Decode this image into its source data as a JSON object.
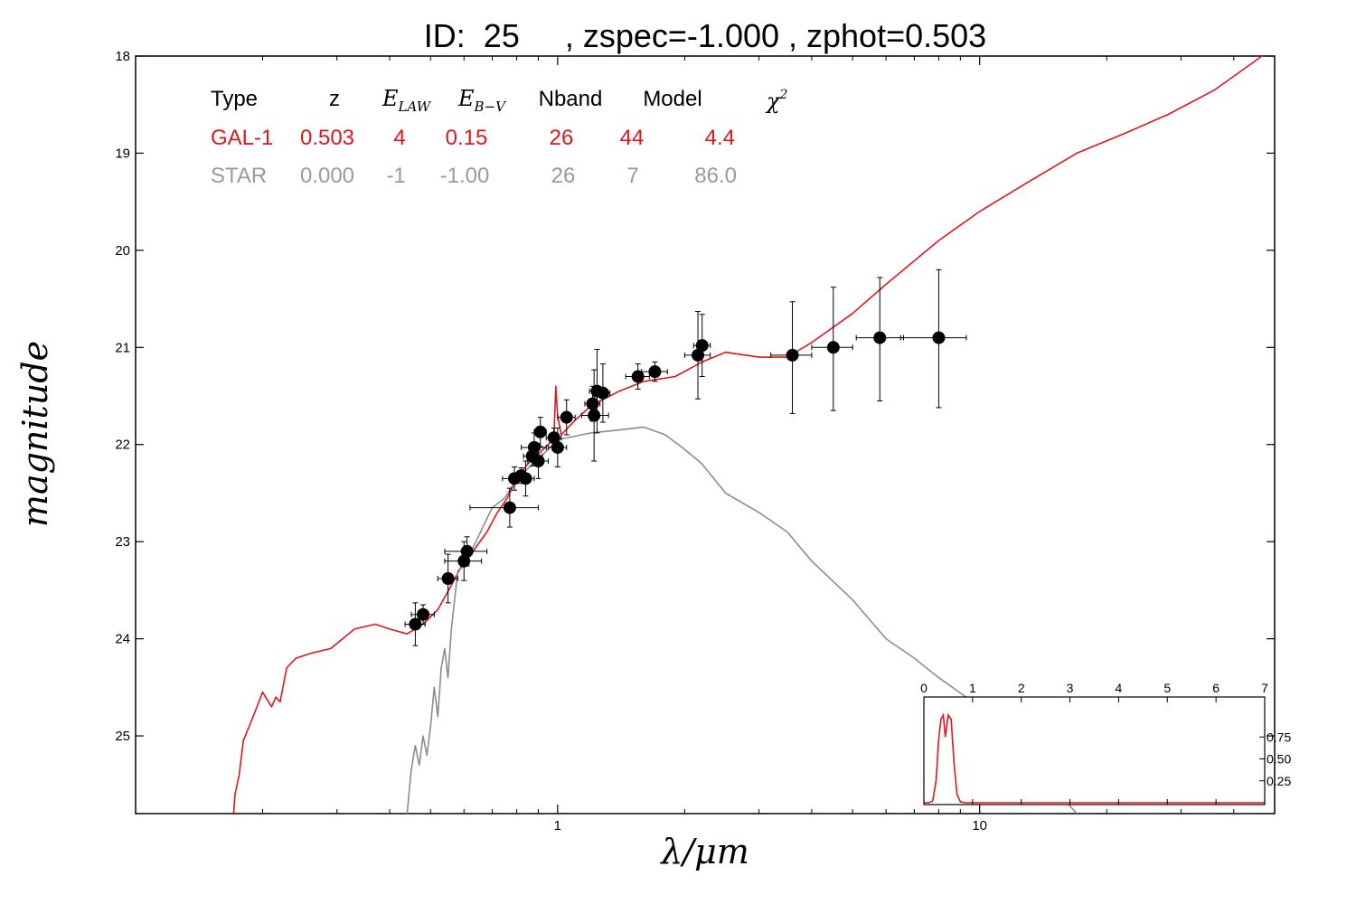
{
  "title": "ID:  25     , zspec=-1.000 , zphot=0.503",
  "colors": {
    "galaxy": "#e0161c",
    "star": "#8c8c8c",
    "points": "#000000",
    "axis": "#000000"
  },
  "chart_data": [
    {
      "type": "line",
      "xlabel": "λ/μm",
      "ylabel": "magnitude",
      "x_scale": "log",
      "y_inverted": true,
      "xlim": [
        0.1,
        50
      ],
      "ylim": [
        18.0,
        25.8
      ],
      "x_ticks": [
        {
          "value": 1,
          "label": "1"
        },
        {
          "value": 10,
          "label": "10"
        }
      ],
      "y_ticks": [
        {
          "value": 18,
          "label": "18"
        },
        {
          "value": 19,
          "label": "19"
        },
        {
          "value": 20,
          "label": "20"
        },
        {
          "value": 21,
          "label": "21"
        },
        {
          "value": 22,
          "label": "22"
        },
        {
          "value": 23,
          "label": "23"
        },
        {
          "value": 24,
          "label": "24"
        },
        {
          "value": 25,
          "label": "25"
        }
      ],
      "grid": false,
      "legend_table": {
        "headers": [
          "Type",
          "z",
          "E_LAW",
          "E_B−V",
          "Nband",
          "Model",
          "χ²"
        ],
        "rows": [
          {
            "type": "GAL-1",
            "z": "0.503",
            "elaw": "4",
            "ebv": "0.15",
            "nband": "26",
            "model": "44",
            "chi2": "4.4",
            "color": "#e0161c"
          },
          {
            "type": "STAR",
            "z": "0.000",
            "elaw": "-1",
            "ebv": "-1.00",
            "nband": "26",
            "model": "7",
            "chi2": "86.0",
            "color": "#9a9a9a"
          }
        ]
      },
      "series": [
        {
          "kind": "galaxy-template",
          "points": [
            [
              0.17,
              25.9
            ],
            [
              0.172,
              25.6
            ],
            [
              0.176,
              25.4
            ],
            [
              0.18,
              25.05
            ],
            [
              0.19,
              24.8
            ],
            [
              0.2,
              24.55
            ],
            [
              0.21,
              24.7
            ],
            [
              0.215,
              24.6
            ],
            [
              0.22,
              24.65
            ],
            [
              0.228,
              24.3
            ],
            [
              0.24,
              24.2
            ],
            [
              0.26,
              24.15
            ],
            [
              0.29,
              24.1
            ],
            [
              0.33,
              23.9
            ],
            [
              0.37,
              23.85
            ],
            [
              0.4,
              23.9
            ],
            [
              0.44,
              23.95
            ],
            [
              0.48,
              23.85
            ],
            [
              0.52,
              23.7
            ],
            [
              0.56,
              23.45
            ],
            [
              0.6,
              23.2
            ],
            [
              0.63,
              23.1
            ],
            [
              0.68,
              22.9
            ],
            [
              0.72,
              22.7
            ],
            [
              0.76,
              22.55
            ],
            [
              0.8,
              22.35
            ],
            [
              0.85,
              22.2
            ],
            [
              0.9,
              22.1
            ],
            [
              0.95,
              22.0
            ],
            [
              0.98,
              21.95
            ],
            [
              0.99,
              21.4
            ],
            [
              1.0,
              21.7
            ],
            [
              1.02,
              21.9
            ],
            [
              1.1,
              21.75
            ],
            [
              1.2,
              21.6
            ],
            [
              1.4,
              21.45
            ],
            [
              1.6,
              21.35
            ],
            [
              1.9,
              21.3
            ],
            [
              2.2,
              21.15
            ],
            [
              2.5,
              21.05
            ],
            [
              3.0,
              21.1
            ],
            [
              3.5,
              21.1
            ],
            [
              4.0,
              20.95
            ],
            [
              5.0,
              20.65
            ],
            [
              6.0,
              20.35
            ],
            [
              8.0,
              19.9
            ],
            [
              10.0,
              19.6
            ],
            [
              13.0,
              19.3
            ],
            [
              17.0,
              19.0
            ],
            [
              22.0,
              18.8
            ],
            [
              28.0,
              18.6
            ],
            [
              36.0,
              18.35
            ],
            [
              45.0,
              18.05
            ],
            [
              50.0,
              17.9
            ]
          ]
        },
        {
          "kind": "star-template",
          "points": [
            [
              0.44,
              25.8
            ],
            [
              0.45,
              25.35
            ],
            [
              0.46,
              25.1
            ],
            [
              0.47,
              25.3
            ],
            [
              0.48,
              25.0
            ],
            [
              0.49,
              25.2
            ],
            [
              0.5,
              24.9
            ],
            [
              0.51,
              24.5
            ],
            [
              0.52,
              24.8
            ],
            [
              0.53,
              24.3
            ],
            [
              0.54,
              24.1
            ],
            [
              0.55,
              24.4
            ],
            [
              0.56,
              23.9
            ],
            [
              0.58,
              23.3
            ],
            [
              0.6,
              23.25
            ],
            [
              0.64,
              23.0
            ],
            [
              0.7,
              22.65
            ],
            [
              0.75,
              22.55
            ],
            [
              0.8,
              22.35
            ],
            [
              0.9,
              22.15
            ],
            [
              1.0,
              21.95
            ],
            [
              1.2,
              21.88
            ],
            [
              1.4,
              21.85
            ],
            [
              1.6,
              21.82
            ],
            [
              1.8,
              21.9
            ],
            [
              2.0,
              22.05
            ],
            [
              2.2,
              22.2
            ],
            [
              2.5,
              22.5
            ],
            [
              3.0,
              22.7
            ],
            [
              3.5,
              22.9
            ],
            [
              4.0,
              23.2
            ],
            [
              5.0,
              23.6
            ],
            [
              6.0,
              24.0
            ],
            [
              7.0,
              24.2
            ],
            [
              8.0,
              24.4
            ],
            [
              10.0,
              24.7
            ],
            [
              12.0,
              25.1
            ],
            [
              14.0,
              25.4
            ],
            [
              17.0,
              25.8
            ]
          ]
        }
      ],
      "photometry": [
        {
          "x": 0.46,
          "y": 23.85,
          "xerr": [
            0.025,
            0.025
          ],
          "yerr": [
            0.22,
            0.22
          ]
        },
        {
          "x": 0.48,
          "y": 23.75,
          "xerr": [
            0.03,
            0.03
          ],
          "yerr": [
            0.1,
            0.1
          ]
        },
        {
          "x": 0.55,
          "y": 23.38,
          "xerr": [
            0.03,
            0.03
          ],
          "yerr": [
            0.25,
            0.25
          ]
        },
        {
          "x": 0.6,
          "y": 23.2,
          "xerr": [
            0.06,
            0.06
          ],
          "yerr": [
            0.2,
            0.2
          ]
        },
        {
          "x": 0.61,
          "y": 23.1,
          "xerr": [
            0.07,
            0.07
          ],
          "yerr": [
            0.15,
            0.15
          ]
        },
        {
          "x": 0.77,
          "y": 22.65,
          "xerr": [
            0.15,
            0.13
          ],
          "yerr": [
            0.2,
            0.2
          ]
        },
        {
          "x": 0.79,
          "y": 22.35,
          "xerr": [
            0.05,
            0.05
          ],
          "yerr": [
            0.12,
            0.12
          ]
        },
        {
          "x": 0.82,
          "y": 22.32,
          "xerr": [
            0.03,
            0.03
          ],
          "yerr": [
            0.08,
            0.08
          ]
        },
        {
          "x": 0.84,
          "y": 22.35,
          "xerr": [
            0.04,
            0.04
          ],
          "yerr": [
            0.18,
            0.18
          ]
        },
        {
          "x": 0.87,
          "y": 22.12,
          "xerr": [
            0.04,
            0.05
          ],
          "yerr": [
            0.1,
            0.1
          ]
        },
        {
          "x": 0.88,
          "y": 22.03,
          "xerr": [
            0.06,
            0.06
          ],
          "yerr": [
            0.15,
            0.15
          ]
        },
        {
          "x": 0.9,
          "y": 22.17,
          "xerr": [
            0.05,
            0.05
          ],
          "yerr": [
            0.18,
            0.18
          ]
        },
        {
          "x": 0.91,
          "y": 21.87,
          "xerr": [
            0.03,
            0.03
          ],
          "yerr": [
            0.15,
            0.15
          ]
        },
        {
          "x": 0.98,
          "y": 21.93,
          "xerr": [
            0.04,
            0.04
          ],
          "yerr": [
            0.1,
            0.1
          ]
        },
        {
          "x": 1.0,
          "y": 22.03,
          "xerr": [
            0.05,
            0.05
          ],
          "yerr": [
            0.2,
            0.2
          ]
        },
        {
          "x": 1.05,
          "y": 21.72,
          "xerr": [
            0.05,
            0.05
          ],
          "yerr": [
            0.18,
            0.18
          ]
        },
        {
          "x": 1.21,
          "y": 21.58,
          "xerr": [
            0.05,
            0.05
          ],
          "yerr": [
            0.18,
            0.18
          ]
        },
        {
          "x": 1.22,
          "y": 21.7,
          "xerr": [
            0.08,
            0.1
          ],
          "yerr": [
            0.47,
            0.47
          ]
        },
        {
          "x": 1.24,
          "y": 21.45,
          "xerr": [
            0.05,
            0.05
          ],
          "yerr": [
            0.43,
            0.43
          ]
        },
        {
          "x": 1.28,
          "y": 21.47,
          "xerr": [
            0.05,
            0.05
          ],
          "yerr": [
            0.3,
            0.3
          ]
        },
        {
          "x": 1.55,
          "y": 21.3,
          "xerr": [
            0.1,
            0.1
          ],
          "yerr": [
            0.13,
            0.13
          ]
        },
        {
          "x": 1.7,
          "y": 21.25,
          "xerr": [
            0.12,
            0.12
          ],
          "yerr": [
            0.1,
            0.1
          ]
        },
        {
          "x": 2.15,
          "y": 21.08,
          "xerr": [
            0.15,
            0.15
          ],
          "yerr": [
            0.45,
            0.45
          ]
        },
        {
          "x": 2.2,
          "y": 20.98,
          "xerr": [
            0.1,
            0.1
          ],
          "yerr": [
            0.32,
            0.32
          ]
        },
        {
          "x": 3.6,
          "y": 21.08,
          "xerr": [
            0.4,
            0.4
          ],
          "yerr": [
            0.55,
            0.6
          ]
        },
        {
          "x": 4.5,
          "y": 21.0,
          "xerr": [
            0.5,
            0.5
          ],
          "yerr": [
            0.62,
            0.65
          ]
        },
        {
          "x": 5.8,
          "y": 20.9,
          "xerr": [
            0.7,
            0.8
          ],
          "yerr": [
            0.62,
            0.65
          ]
        },
        {
          "x": 8.0,
          "y": 20.9,
          "xerr": [
            1.5,
            1.3
          ],
          "yerr": [
            0.7,
            0.72
          ]
        }
      ]
    },
    {
      "type": "line",
      "kind": "pdz-inset",
      "xlim": [
        0,
        7
      ],
      "ylim": [
        0,
        1.0
      ],
      "x_ticks": [
        {
          "value": 0,
          "label": "0"
        },
        {
          "value": 1,
          "label": "1"
        },
        {
          "value": 2,
          "label": "2"
        },
        {
          "value": 3,
          "label": "3"
        },
        {
          "value": 4,
          "label": "4"
        },
        {
          "value": 5,
          "label": "5"
        },
        {
          "value": 6,
          "label": "6"
        },
        {
          "value": 7,
          "label": "7"
        }
      ],
      "y_ticks": [
        {
          "value": 0.25,
          "label": "0.25"
        },
        {
          "value": 0.5,
          "label": "0.50"
        },
        {
          "value": 0.75,
          "label": "0.75"
        }
      ],
      "points": [
        [
          0,
          0.0
        ],
        [
          0.1,
          0.0
        ],
        [
          0.18,
          0.02
        ],
        [
          0.25,
          0.25
        ],
        [
          0.3,
          0.7
        ],
        [
          0.35,
          0.95
        ],
        [
          0.4,
          1.0
        ],
        [
          0.44,
          0.75
        ],
        [
          0.5,
          1.0
        ],
        [
          0.56,
          0.95
        ],
        [
          0.62,
          0.45
        ],
        [
          0.68,
          0.1
        ],
        [
          0.75,
          0.01
        ],
        [
          0.85,
          0.0
        ],
        [
          7,
          0.0
        ]
      ]
    }
  ]
}
